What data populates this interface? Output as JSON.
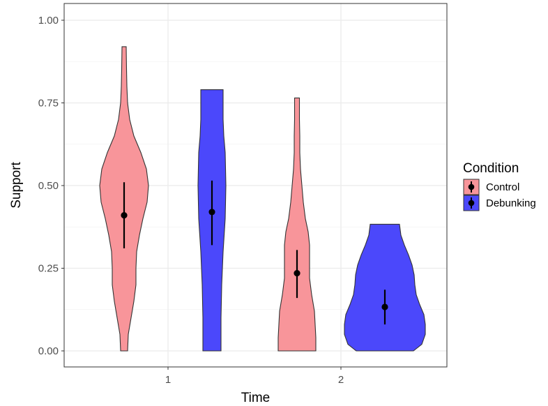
{
  "chart_data": {
    "type": "violin",
    "xlabel": "Time",
    "ylabel": "Support",
    "categories": [
      "1",
      "2"
    ],
    "ylim": [
      0,
      1.05
    ],
    "y_ticks": [
      "0.00",
      "0.25",
      "0.50",
      "0.75",
      "1.00"
    ],
    "grid": true,
    "legend": {
      "title": "Condition",
      "placement": "right"
    },
    "series": [
      {
        "name": "Control",
        "color": "#F8959A",
        "groups": [
          {
            "x": "1",
            "mean": 0.41,
            "ci_low": 0.31,
            "ci_high": 0.51,
            "min": 0.0,
            "max": 0.92
          },
          {
            "x": "2",
            "mean": 0.235,
            "ci_low": 0.16,
            "ci_high": 0.305,
            "min": 0.0,
            "max": 0.765
          }
        ]
      },
      {
        "name": "Debunking",
        "color": "#4B48FB",
        "groups": [
          {
            "x": "1",
            "mean": 0.42,
            "ci_low": 0.32,
            "ci_high": 0.515,
            "min": 0.0,
            "max": 0.79
          },
          {
            "x": "2",
            "mean": 0.133,
            "ci_low": 0.08,
            "ci_high": 0.185,
            "min": 0.0,
            "max": 0.383
          }
        ]
      }
    ]
  }
}
